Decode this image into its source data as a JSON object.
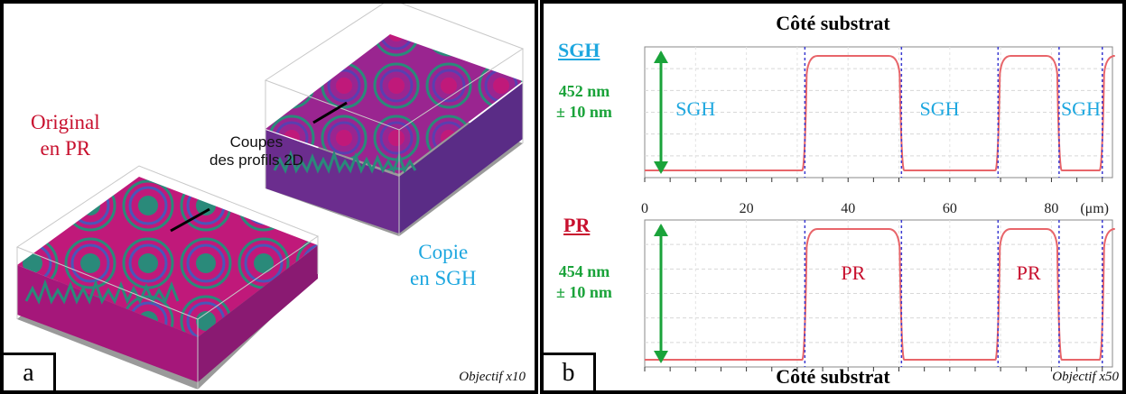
{
  "panel_a": {
    "corner_label": "a",
    "original_label": [
      "Original",
      "en PR"
    ],
    "coupes_label": [
      "Coupes",
      "des profils 2D"
    ],
    "copie_label": [
      "Copie",
      "en SGH"
    ],
    "objective": "Objectif x10",
    "colors": {
      "surface": "#c0197a",
      "ring": "#2a8a7a",
      "floor": "#9a9a9a"
    }
  },
  "panel_b": {
    "corner_label": "b",
    "top_title": "Côté substrat",
    "bottom_title": "Côté substrat",
    "objective": "Objectif x50",
    "sgh": {
      "name": "SGH",
      "height": "452 nm",
      "tolerance": "± 10 nm",
      "region_labels": [
        "SGH",
        "SGH",
        "SGH"
      ]
    },
    "pr": {
      "name": "PR",
      "height": "454 nm",
      "tolerance": "± 10 nm",
      "region_labels": [
        "PR",
        "PR"
      ]
    },
    "axis": {
      "ticks": [
        "0",
        "20",
        "40",
        "60",
        "80"
      ],
      "unit": "(μm)",
      "xlim": [
        0,
        92
      ]
    },
    "colors": {
      "profile": "#e8656a",
      "guide": "#3a3ad0",
      "arrow": "#1aa33a",
      "sgh": "#1da7df",
      "pr": "#c8102e"
    }
  }
}
